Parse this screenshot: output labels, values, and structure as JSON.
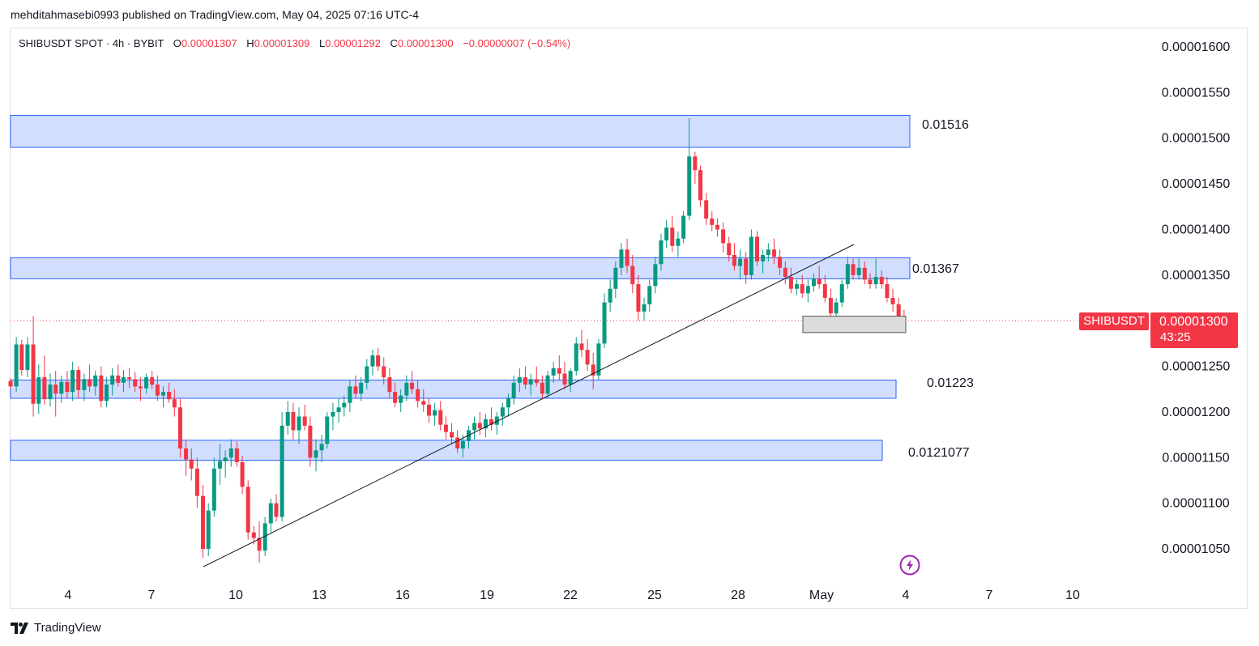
{
  "header": {
    "published": "mehditahmasebi0993 published on TradingView.com, May 04, 2025 07:16 UTC-4"
  },
  "legend": {
    "symbol": "SHIBUSDT SPOT · 4h · BYBIT",
    "open_label": "O",
    "open": "0.00001307",
    "high_label": "H",
    "high": "0.00001309",
    "low_label": "L",
    "low": "0.00001292",
    "close_label": "C",
    "close": "0.00001300",
    "change": "−0.00000007 (−0.54%)"
  },
  "price_tag": {
    "symbol": "SHIBUSDT",
    "price": "0.00001300",
    "countdown": "43:25"
  },
  "brand": {
    "name": "TradingView"
  },
  "icons": {
    "brand": "tradingview-logo-icon",
    "flash": "lightning-icon"
  },
  "colors": {
    "up": "#089981",
    "down": "#f23645",
    "zone_fill": "#d1deff",
    "zone_border": "#2962ff",
    "trendline": "#131722",
    "grid_text": "#131722"
  },
  "chart_data": {
    "type": "candlestick",
    "timeframe": "4h",
    "ylim": [
      1e-05,
      1.64e-05
    ],
    "y_ticks": [
      "0.00001600",
      "0.00001550",
      "0.00001500",
      "0.00001450",
      "0.00001400",
      "0.00001350",
      "0.00001300",
      "0.00001250",
      "0.00001200",
      "0.00001150",
      "0.00001100",
      "0.00001050"
    ],
    "x_ticks": [
      "4",
      "7",
      "10",
      "13",
      "16",
      "19",
      "22",
      "25",
      "28",
      "May",
      "4",
      "7",
      "10"
    ],
    "zones": [
      {
        "label": "0.01516",
        "top": 1.525e-05,
        "bottom": 1.49e-05
      },
      {
        "label": "0.01367",
        "top": 1.369e-05,
        "bottom": 1.346e-05
      },
      {
        "label": "0.01223",
        "top": 1.235e-05,
        "bottom": 1.215e-05
      },
      {
        "label": "0.0121077",
        "top": 1.169e-05,
        "bottom": 1.147e-05
      }
    ],
    "small_box": {
      "top": 1.305e-05,
      "bottom": 1.287e-05
    },
    "trendline": {
      "from": {
        "day": 8.8,
        "price": 1.033e-05
      },
      "to": {
        "day": 30.5,
        "price": 1.384e-05
      }
    },
    "last_price": 1.3e-05,
    "candles": [
      [
        1.0,
        1234,
        1237,
        1225,
        1228
      ],
      [
        1.17,
        1228,
        1282,
        1222,
        1274
      ],
      [
        1.33,
        1274,
        1279,
        1240,
        1246
      ],
      [
        1.5,
        1246,
        1282,
        1238,
        1274
      ],
      [
        1.67,
        1274,
        1305,
        1195,
        1209
      ],
      [
        1.83,
        1209,
        1252,
        1198,
        1238
      ],
      [
        2.0,
        1238,
        1262,
        1208,
        1214
      ],
      [
        2.17,
        1214,
        1242,
        1206,
        1230
      ],
      [
        2.33,
        1230,
        1245,
        1195,
        1220
      ],
      [
        2.5,
        1220,
        1240,
        1210,
        1233
      ],
      [
        2.67,
        1233,
        1245,
        1215,
        1222
      ],
      [
        2.83,
        1222,
        1255,
        1212,
        1246
      ],
      [
        3.0,
        1246,
        1250,
        1215,
        1224
      ],
      [
        3.17,
        1224,
        1242,
        1212,
        1236
      ],
      [
        3.33,
        1236,
        1252,
        1222,
        1228
      ],
      [
        3.5,
        1228,
        1245,
        1218,
        1240
      ],
      [
        3.67,
        1240,
        1250,
        1205,
        1212
      ],
      [
        3.83,
        1212,
        1238,
        1205,
        1230
      ],
      [
        4.0,
        1230,
        1248,
        1218,
        1240
      ],
      [
        4.17,
        1240,
        1252,
        1228,
        1232
      ],
      [
        4.33,
        1232,
        1246,
        1222,
        1238
      ],
      [
        4.5,
        1238,
        1248,
        1226,
        1236
      ],
      [
        4.67,
        1236,
        1244,
        1222,
        1228
      ],
      [
        4.83,
        1228,
        1238,
        1212,
        1226
      ],
      [
        5.0,
        1226,
        1242,
        1220,
        1238
      ],
      [
        5.17,
        1238,
        1245,
        1225,
        1230
      ],
      [
        5.33,
        1230,
        1240,
        1212,
        1218
      ],
      [
        5.5,
        1218,
        1228,
        1205,
        1222
      ],
      [
        5.67,
        1222,
        1232,
        1210,
        1214
      ],
      [
        5.83,
        1214,
        1225,
        1195,
        1205
      ],
      [
        6.0,
        1205,
        1215,
        1150,
        1160
      ],
      [
        6.17,
        1160,
        1170,
        1130,
        1148
      ],
      [
        6.33,
        1148,
        1160,
        1125,
        1138
      ],
      [
        6.5,
        1138,
        1150,
        1095,
        1108
      ],
      [
        6.67,
        1108,
        1120,
        1040,
        1050
      ],
      [
        6.83,
        1050,
        1100,
        1042,
        1092
      ],
      [
        7.0,
        1092,
        1150,
        1085,
        1138
      ],
      [
        7.17,
        1138,
        1165,
        1120,
        1146
      ],
      [
        7.33,
        1146,
        1158,
        1128,
        1150
      ],
      [
        7.5,
        1150,
        1170,
        1140,
        1160
      ],
      [
        7.67,
        1160,
        1168,
        1140,
        1145
      ],
      [
        7.83,
        1145,
        1152,
        1110,
        1118
      ],
      [
        8.0,
        1118,
        1125,
        1060,
        1068
      ],
      [
        8.17,
        1068,
        1075,
        1055,
        1062
      ],
      [
        8.33,
        1062,
        1080,
        1035,
        1048
      ],
      [
        8.5,
        1048,
        1085,
        1042,
        1078
      ],
      [
        8.67,
        1078,
        1105,
        1068,
        1100
      ],
      [
        8.83,
        1100,
        1110,
        1080,
        1085
      ],
      [
        9.0,
        1085,
        1200,
        1080,
        1185
      ],
      [
        9.17,
        1185,
        1212,
        1175,
        1200
      ],
      [
        9.33,
        1200,
        1210,
        1170,
        1180
      ],
      [
        9.5,
        1180,
        1205,
        1165,
        1195
      ],
      [
        9.67,
        1195,
        1208,
        1180,
        1185
      ],
      [
        9.83,
        1185,
        1195,
        1140,
        1150
      ],
      [
        10.0,
        1150,
        1170,
        1135,
        1158
      ],
      [
        10.17,
        1158,
        1175,
        1145,
        1165
      ],
      [
        10.33,
        1165,
        1200,
        1160,
        1195
      ],
      [
        10.5,
        1195,
        1210,
        1180,
        1200
      ],
      [
        10.67,
        1200,
        1215,
        1188,
        1205
      ],
      [
        10.83,
        1205,
        1218,
        1195,
        1210
      ],
      [
        11.0,
        1210,
        1235,
        1200,
        1228
      ],
      [
        11.17,
        1228,
        1240,
        1215,
        1220
      ],
      [
        11.33,
        1220,
        1238,
        1212,
        1232
      ],
      [
        11.5,
        1232,
        1258,
        1225,
        1250
      ],
      [
        11.67,
        1250,
        1268,
        1240,
        1262
      ],
      [
        11.83,
        1262,
        1270,
        1245,
        1250
      ],
      [
        12.0,
        1250,
        1260,
        1230,
        1238
      ],
      [
        12.17,
        1238,
        1248,
        1215,
        1222
      ],
      [
        12.33,
        1222,
        1232,
        1205,
        1210
      ],
      [
        12.5,
        1210,
        1225,
        1200,
        1218
      ],
      [
        12.67,
        1218,
        1240,
        1212,
        1232
      ],
      [
        12.83,
        1232,
        1245,
        1220,
        1225
      ],
      [
        13.0,
        1225,
        1235,
        1205,
        1212
      ],
      [
        13.17,
        1212,
        1225,
        1200,
        1208
      ],
      [
        13.33,
        1208,
        1215,
        1188,
        1196
      ],
      [
        13.5,
        1196,
        1210,
        1185,
        1202
      ],
      [
        13.67,
        1202,
        1212,
        1180,
        1186
      ],
      [
        13.83,
        1186,
        1195,
        1170,
        1178
      ],
      [
        14.0,
        1178,
        1188,
        1165,
        1172
      ],
      [
        14.17,
        1172,
        1180,
        1155,
        1160
      ],
      [
        14.33,
        1160,
        1175,
        1150,
        1168
      ],
      [
        14.5,
        1168,
        1185,
        1160,
        1180
      ],
      [
        14.67,
        1180,
        1195,
        1170,
        1188
      ],
      [
        14.83,
        1188,
        1200,
        1175,
        1182
      ],
      [
        15.0,
        1182,
        1198,
        1172,
        1192
      ],
      [
        15.17,
        1192,
        1205,
        1180,
        1186
      ],
      [
        15.33,
        1186,
        1200,
        1175,
        1195
      ],
      [
        15.5,
        1195,
        1210,
        1185,
        1205
      ],
      [
        15.67,
        1205,
        1220,
        1195,
        1215
      ],
      [
        15.83,
        1215,
        1240,
        1208,
        1232
      ],
      [
        16.0,
        1232,
        1248,
        1222,
        1238
      ],
      [
        16.17,
        1238,
        1250,
        1225,
        1230
      ],
      [
        16.33,
        1230,
        1242,
        1218,
        1236
      ],
      [
        16.5,
        1236,
        1250,
        1228,
        1232
      ],
      [
        16.67,
        1232,
        1240,
        1215,
        1220
      ],
      [
        16.83,
        1220,
        1245,
        1215,
        1240
      ],
      [
        17.0,
        1240,
        1255,
        1232,
        1248
      ],
      [
        17.17,
        1248,
        1262,
        1235,
        1242
      ],
      [
        17.33,
        1242,
        1255,
        1225,
        1230
      ],
      [
        17.5,
        1230,
        1248,
        1222,
        1245
      ],
      [
        17.67,
        1245,
        1282,
        1240,
        1275
      ],
      [
        17.83,
        1275,
        1290,
        1260,
        1268
      ],
      [
        18.0,
        1268,
        1280,
        1245,
        1252
      ],
      [
        18.17,
        1252,
        1265,
        1225,
        1240
      ],
      [
        18.33,
        1240,
        1280,
        1235,
        1275
      ],
      [
        18.5,
        1275,
        1330,
        1270,
        1320
      ],
      [
        18.67,
        1320,
        1345,
        1310,
        1335
      ],
      [
        18.83,
        1335,
        1365,
        1325,
        1358
      ],
      [
        19.0,
        1358,
        1385,
        1350,
        1378
      ],
      [
        19.17,
        1378,
        1390,
        1352,
        1360
      ],
      [
        19.33,
        1360,
        1372,
        1330,
        1340
      ],
      [
        19.5,
        1340,
        1350,
        1300,
        1310
      ],
      [
        19.67,
        1310,
        1325,
        1300,
        1318
      ],
      [
        19.83,
        1318,
        1345,
        1310,
        1338
      ],
      [
        20.0,
        1338,
        1370,
        1330,
        1362
      ],
      [
        20.17,
        1362,
        1395,
        1355,
        1388
      ],
      [
        20.33,
        1388,
        1410,
        1380,
        1402
      ],
      [
        20.5,
        1402,
        1415,
        1375,
        1382
      ],
      [
        20.67,
        1382,
        1398,
        1370,
        1390
      ],
      [
        20.83,
        1390,
        1420,
        1385,
        1415
      ],
      [
        21.0,
        1415,
        1522,
        1410,
        1480
      ],
      [
        21.17,
        1480,
        1485,
        1450,
        1465
      ],
      [
        21.33,
        1465,
        1470,
        1425,
        1432
      ],
      [
        21.5,
        1432,
        1440,
        1405,
        1412
      ],
      [
        21.67,
        1412,
        1420,
        1398,
        1405
      ],
      [
        21.83,
        1405,
        1412,
        1392,
        1400
      ],
      [
        22.0,
        1400,
        1408,
        1375,
        1385
      ],
      [
        22.17,
        1385,
        1392,
        1365,
        1372
      ],
      [
        22.33,
        1372,
        1385,
        1355,
        1360
      ],
      [
        22.5,
        1360,
        1378,
        1345,
        1368
      ],
      [
        22.67,
        1368,
        1375,
        1340,
        1350
      ],
      [
        22.83,
        1350,
        1400,
        1345,
        1392
      ],
      [
        23.0,
        1392,
        1398,
        1360,
        1365
      ],
      [
        23.17,
        1365,
        1378,
        1352,
        1372
      ],
      [
        23.33,
        1372,
        1385,
        1365,
        1378
      ],
      [
        23.5,
        1378,
        1390,
        1362,
        1370
      ],
      [
        23.67,
        1370,
        1378,
        1350,
        1358
      ],
      [
        23.83,
        1358,
        1365,
        1340,
        1348
      ],
      [
        24.0,
        1348,
        1358,
        1330,
        1335
      ],
      [
        24.17,
        1335,
        1345,
        1328,
        1340
      ],
      [
        24.33,
        1340,
        1350,
        1325,
        1330
      ],
      [
        24.5,
        1330,
        1345,
        1320,
        1338
      ],
      [
        24.67,
        1338,
        1352,
        1332,
        1346
      ],
      [
        24.83,
        1346,
        1360,
        1335,
        1340
      ],
      [
        25.0,
        1340,
        1350,
        1320,
        1325
      ],
      [
        25.17,
        1325,
        1335,
        1300,
        1308
      ],
      [
        25.33,
        1308,
        1325,
        1300,
        1320
      ],
      [
        25.5,
        1320,
        1345,
        1315,
        1340
      ],
      [
        25.67,
        1340,
        1370,
        1335,
        1362
      ],
      [
        25.83,
        1362,
        1368,
        1345,
        1350
      ],
      [
        26.0,
        1350,
        1368,
        1345,
        1358
      ],
      [
        26.17,
        1358,
        1365,
        1340,
        1345
      ],
      [
        26.33,
        1345,
        1352,
        1335,
        1340
      ],
      [
        26.5,
        1340,
        1368,
        1335,
        1348
      ],
      [
        26.67,
        1348,
        1355,
        1335,
        1340
      ],
      [
        26.83,
        1340,
        1348,
        1320,
        1325
      ],
      [
        27.0,
        1325,
        1335,
        1310,
        1318
      ],
      [
        27.17,
        1318,
        1325,
        1300,
        1305
      ],
      [
        27.33,
        1305,
        1312,
        1292,
        1300
      ]
    ]
  }
}
